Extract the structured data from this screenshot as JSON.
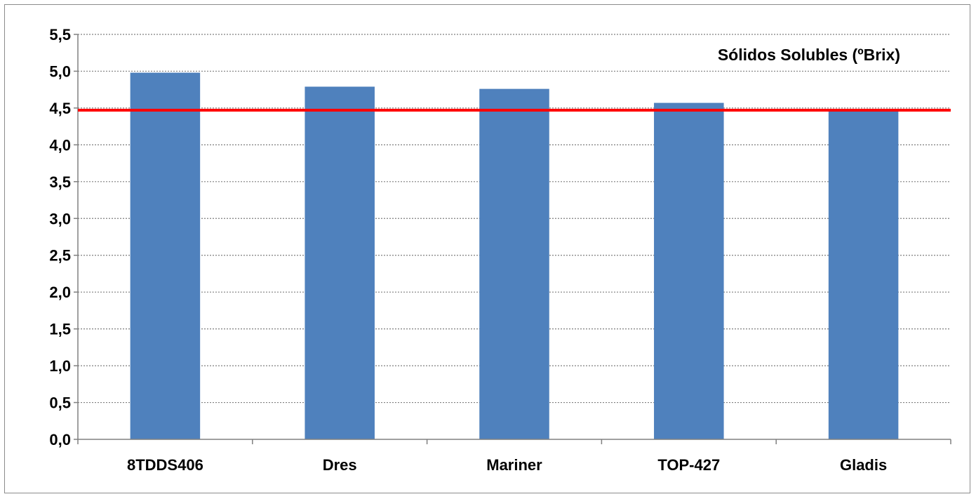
{
  "chart_data": {
    "type": "bar",
    "title": "Sólidos Solubles (ºBrix)",
    "categories": [
      "8TDDS406",
      "Dres",
      "Mariner",
      "TOP-427",
      "Gladis"
    ],
    "values": [
      4.98,
      4.79,
      4.76,
      4.57,
      4.47
    ],
    "ylim": [
      0,
      5.5
    ],
    "yticks": [
      0,
      0.5,
      1,
      1.5,
      2,
      2.5,
      3,
      3.5,
      4,
      4.5,
      5,
      5.5
    ],
    "ytick_labels": [
      "0,0",
      "0,5",
      "1,0",
      "1,5",
      "2,0",
      "2,5",
      "3,0",
      "3,5",
      "4,0",
      "4,5",
      "5,0",
      "5,5"
    ],
    "reference_line": 4.47,
    "grid": true,
    "grid_style": "dotted",
    "legend": "none",
    "colors": {
      "bar": "#4F81BD",
      "reference_line": "#FF0000",
      "grid": "#7f7f7f",
      "axis": "#808080",
      "frame": "#8c8c8c"
    }
  }
}
